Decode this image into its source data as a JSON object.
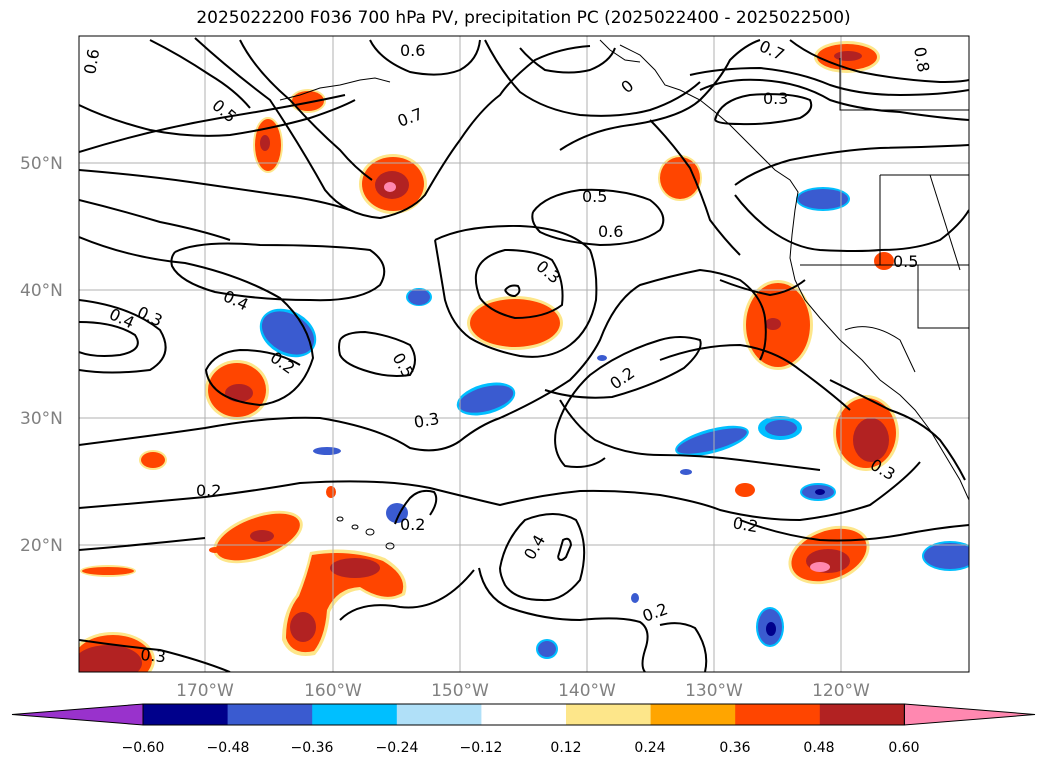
{
  "title": "2025022200 F036 700 hPa PV, precipitation PC (2025022400 - 2025022500)",
  "map": {
    "lat_labels": [
      "50°N",
      "40°N",
      "30°N",
      "20°N"
    ],
    "lon_labels": [
      "170°W",
      "160°W",
      "150°W",
      "140°W",
      "130°W",
      "120°W"
    ],
    "contour_labels": [
      "0.6",
      "0.5",
      "0.7",
      "0.4",
      "0.3",
      "0.2",
      "0.5",
      "0.6",
      "0.3",
      "0.5",
      "0.2",
      "0.3",
      "0.2",
      "0.2",
      "0.4",
      "0.2",
      "0.2",
      "0.3",
      "0.3",
      "0.4",
      "0.7",
      "0.8",
      "0.5",
      "0.6",
      "0.3",
      "0"
    ],
    "grid": true
  },
  "colorbar": {
    "ticks": [
      "−0.60",
      "−0.48",
      "−0.36",
      "−0.24",
      "−0.12",
      "0.12",
      "0.24",
      "0.36",
      "0.48",
      "0.60"
    ],
    "colors": [
      "#9932cc",
      "#00008b",
      "#3a5bd0",
      "#00bfff",
      "#b0e0f8",
      "#ffffff",
      "#fde68a",
      "#ffa500",
      "#ff4500",
      "#b22222",
      "#ff88b0"
    ]
  }
}
